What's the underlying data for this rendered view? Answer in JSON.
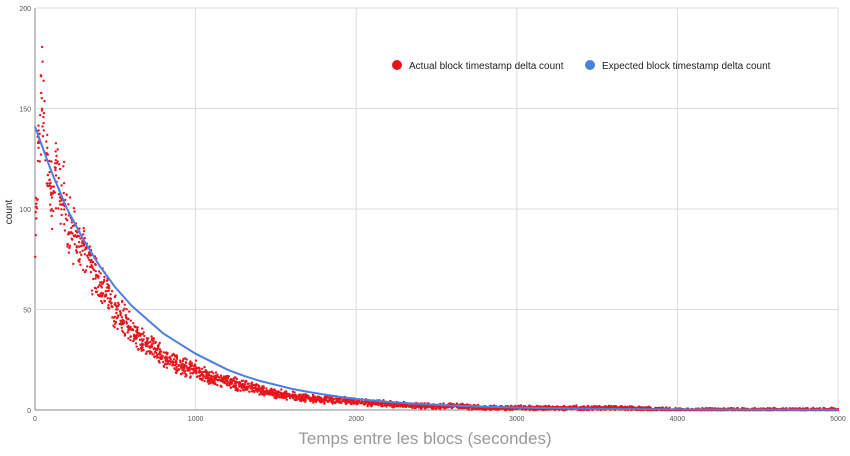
{
  "chart_data": {
    "type": "scatter",
    "title": "",
    "xlabel": "Temps entre les blocs (secondes)",
    "ylabel": "count",
    "xlim": [
      0,
      5000
    ],
    "ylim": [
      0,
      200
    ],
    "x_ticks": [
      0,
      1000,
      2000,
      3000,
      4000,
      5000
    ],
    "y_ticks": [
      0,
      50,
      100,
      150,
      200
    ],
    "grid": true,
    "legend_position": "top-right",
    "series": [
      {
        "name": "Actual block timestamp delta count",
        "type": "scatter",
        "color": "#e8141c",
        "x": [
          0,
          20,
          40,
          60,
          80,
          100,
          120,
          140,
          160,
          180,
          200,
          240,
          280,
          320,
          360,
          400,
          450,
          500,
          550,
          600,
          650,
          700,
          750,
          800,
          850,
          900,
          950,
          1000,
          1050,
          1100,
          1150,
          1200,
          1250,
          1300,
          1350,
          1400,
          1450,
          1500,
          1600,
          1700,
          1800,
          1900,
          2000,
          2200,
          2400,
          2600,
          2800,
          3000,
          3300,
          3600,
          4000,
          4400,
          4800,
          5000
        ],
        "y": [
          80,
          125,
          158,
          140,
          118,
          108,
          112,
          128,
          100,
          110,
          95,
          86,
          82,
          76,
          70,
          63,
          57,
          50,
          45,
          40,
          36,
          32,
          30,
          26,
          24,
          22,
          21,
          20,
          18,
          16,
          15,
          14,
          13,
          12,
          11,
          10,
          9,
          8,
          7,
          6,
          5,
          5,
          4,
          3,
          2,
          2,
          1,
          1,
          1,
          1,
          0,
          0,
          0,
          0
        ],
        "spread_fraction": 0.18,
        "points_per_x": 38
      },
      {
        "name": "Expected block timestamp delta count",
        "type": "line",
        "color": "#4d7fe0",
        "x": [
          0,
          100,
          200,
          300,
          400,
          500,
          600,
          700,
          800,
          900,
          1000,
          1100,
          1200,
          1300,
          1400,
          1500,
          1600,
          1700,
          1800,
          1900,
          2000,
          2200,
          2400,
          2600,
          2800,
          3000,
          3300,
          3600,
          4000,
          4400,
          4800,
          5000
        ],
        "y": [
          141,
          119,
          100,
          85,
          72,
          61,
          52,
          45,
          38,
          33,
          28,
          24,
          20,
          17,
          14.5,
          12.5,
          10.5,
          9,
          7.7,
          6.5,
          5.5,
          4,
          3,
          2.2,
          1.6,
          1.2,
          0.8,
          0.5,
          0.3,
          0.2,
          0.1,
          0.1
        ]
      }
    ]
  }
}
